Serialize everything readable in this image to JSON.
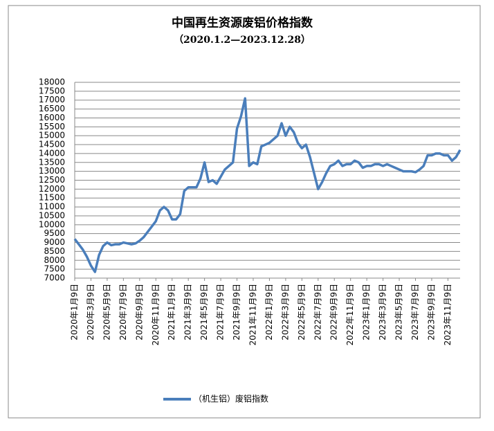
{
  "chart_data": {
    "type": "line",
    "title": "中国再生资源废铝价格指数",
    "subtitle": "（2020.1.2—2023.12.28）",
    "categories": [
      "2020年1月9日",
      null,
      null,
      null,
      "2020年3月9日",
      null,
      null,
      null,
      "2020年5月9日",
      null,
      null,
      null,
      "2020年7月9日",
      null,
      null,
      null,
      "2020年9月9日",
      null,
      null,
      null,
      "2020年11月9日",
      null,
      null,
      null,
      "2021年1月9日",
      null,
      null,
      null,
      "2021年3月9日",
      null,
      null,
      null,
      "2021年5月9日",
      null,
      null,
      null,
      "2021年7月9日",
      null,
      null,
      null,
      "2021年9月9日",
      null,
      null,
      null,
      "2021年11月9日",
      null,
      null,
      null,
      "2022年1月9日",
      null,
      null,
      null,
      "2022年3月9日",
      null,
      null,
      null,
      "2022年5月9日",
      null,
      null,
      null,
      "2022年7月9日",
      null,
      null,
      null,
      "2022年9月9日",
      null,
      null,
      null,
      "2022年11月9日",
      null,
      null,
      null,
      "2023年1月9日",
      null,
      null,
      null,
      "2023年3月9日",
      null,
      null,
      null,
      "2023年5月9日",
      null,
      null,
      null,
      "2023年7月9日",
      null,
      null,
      null,
      "2023年9月9日",
      null,
      null,
      null,
      "2023年11月9日",
      null,
      null,
      null
    ],
    "series": [
      {
        "name": "（机生铝）废铝指数",
        "color": "#4a7ebb",
        "values": [
          9200,
          8900,
          8600,
          8200,
          7700,
          7350,
          8300,
          8800,
          9000,
          8850,
          8900,
          8900,
          9000,
          8950,
          8900,
          8950,
          9100,
          9300,
          9600,
          9900,
          10200,
          10800,
          11000,
          10800,
          10300,
          10300,
          10600,
          11900,
          12100,
          12100,
          12100,
          12600,
          13500,
          12400,
          12500,
          12300,
          12700,
          13100,
          13300,
          13500,
          15400,
          16100,
          17100,
          13300,
          13500,
          13400,
          14400,
          14500,
          14600,
          14800,
          15000,
          15700,
          15000,
          15500,
          15200,
          14600,
          14300,
          14500,
          13800,
          12900,
          12000,
          12400,
          12900,
          13300,
          13400,
          13600,
          13300,
          13400,
          13400,
          13600,
          13500,
          13200,
          13300,
          13300,
          13400,
          13400,
          13300,
          13400,
          13300,
          13200,
          13100,
          13000,
          13000,
          13000,
          12950,
          13100,
          13300,
          13900,
          13900,
          14000,
          14000,
          13900,
          13900,
          13600,
          13800,
          14200
        ]
      }
    ],
    "ylim": [
      7000,
      18000
    ],
    "yticks": [
      7000,
      7500,
      8000,
      8500,
      9000,
      9500,
      10000,
      10500,
      11000,
      11500,
      12000,
      12500,
      13000,
      13500,
      14000,
      14500,
      15000,
      15500,
      16000,
      16500,
      17000,
      17500,
      18000
    ],
    "grid": true
  }
}
